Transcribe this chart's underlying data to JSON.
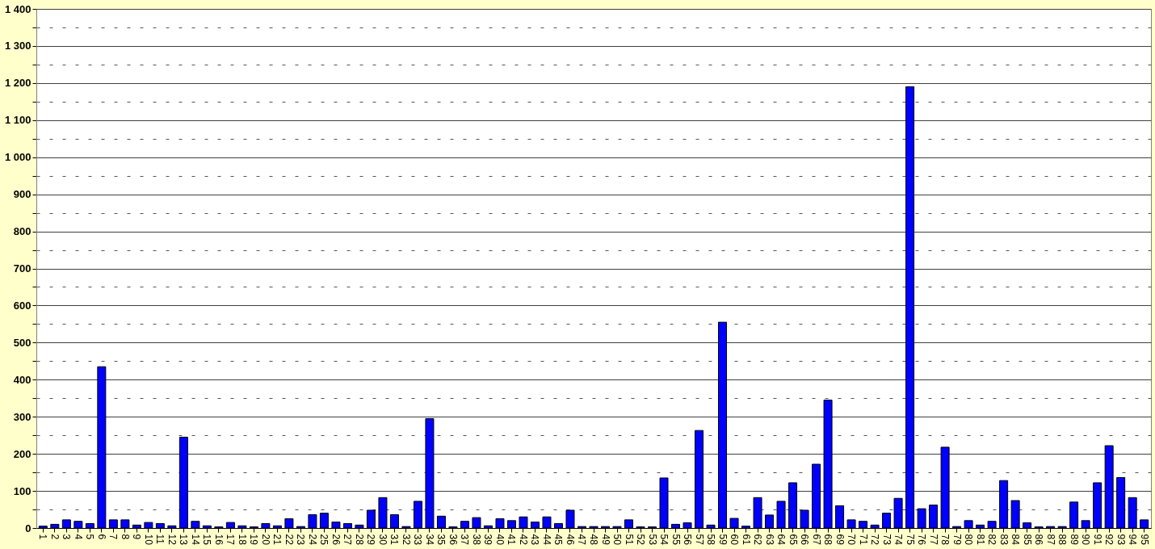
{
  "chart_data": {
    "type": "bar",
    "categories": [
      "1",
      "2",
      "3",
      "4",
      "5",
      "6",
      "7",
      "8",
      "9",
      "10",
      "11",
      "12",
      "13",
      "14",
      "15",
      "16",
      "17",
      "18",
      "19",
      "20",
      "21",
      "22",
      "23",
      "24",
      "25",
      "26",
      "27",
      "28",
      "29",
      "30",
      "31",
      "32",
      "33",
      "34",
      "35",
      "36",
      "37",
      "38",
      "39",
      "40",
      "41",
      "42",
      "43",
      "44",
      "45",
      "46",
      "47",
      "48",
      "49",
      "50",
      "51",
      "52",
      "53",
      "54",
      "55",
      "56",
      "57",
      "58",
      "59",
      "60",
      "61",
      "62",
      "63",
      "64",
      "65",
      "66",
      "67",
      "68",
      "69",
      "70",
      "71",
      "72",
      "73",
      "74",
      "75",
      "76",
      "77",
      "78",
      "79",
      "80",
      "81",
      "82",
      "83",
      "84",
      "85",
      "86",
      "87",
      "88",
      "89",
      "90",
      "91",
      "92",
      "93",
      "94",
      "95"
    ],
    "values": [
      5,
      10,
      22,
      18,
      12,
      435,
      22,
      22,
      8,
      15,
      12,
      6,
      245,
      18,
      6,
      3,
      15,
      6,
      3,
      12,
      6,
      25,
      4,
      36,
      40,
      16,
      12,
      8,
      48,
      82,
      36,
      4,
      72,
      295,
      32,
      3,
      18,
      28,
      6,
      25,
      20,
      30,
      16,
      30,
      12,
      48,
      4,
      4,
      4,
      4,
      22,
      3,
      3,
      135,
      10,
      14,
      263,
      8,
      555,
      26,
      5,
      82,
      35,
      72,
      122,
      48,
      172,
      345,
      60,
      22,
      18,
      8,
      40,
      80,
      1190,
      52,
      62,
      218,
      4,
      20,
      8,
      18,
      128,
      74,
      14,
      3,
      4,
      4,
      70,
      20,
      122,
      222,
      136,
      82,
      22
    ],
    "color": "#0000ff",
    "ylim": [
      0,
      1400
    ],
    "yticks": [
      0,
      {
        "value": 50,
        "label": null
      },
      100,
      {
        "value": 150,
        "label": null
      },
      200,
      {
        "value": 250,
        "label": null
      },
      300,
      {
        "value": 350,
        "label": null
      },
      400,
      {
        "value": 450,
        "label": null
      },
      500,
      {
        "value": 550,
        "label": null
      },
      600,
      {
        "value": 650,
        "label": null
      },
      700,
      {
        "value": 750,
        "label": null
      },
      800,
      {
        "value": 850,
        "label": null
      },
      900,
      {
        "value": 950,
        "label": null
      },
      {
        "value": 1000,
        "label": "1 000"
      },
      {
        "value": 1050,
        "label": null
      },
      {
        "value": 1100,
        "label": "1 100"
      },
      {
        "value": 1150,
        "label": null
      },
      {
        "value": 1200,
        "label": "1 200"
      },
      {
        "value": 1250,
        "label": null
      },
      {
        "value": 1300,
        "label": "1 300"
      },
      {
        "value": 1350,
        "label": null
      },
      {
        "value": 1400,
        "label": "1 400"
      }
    ],
    "grid": true
  }
}
